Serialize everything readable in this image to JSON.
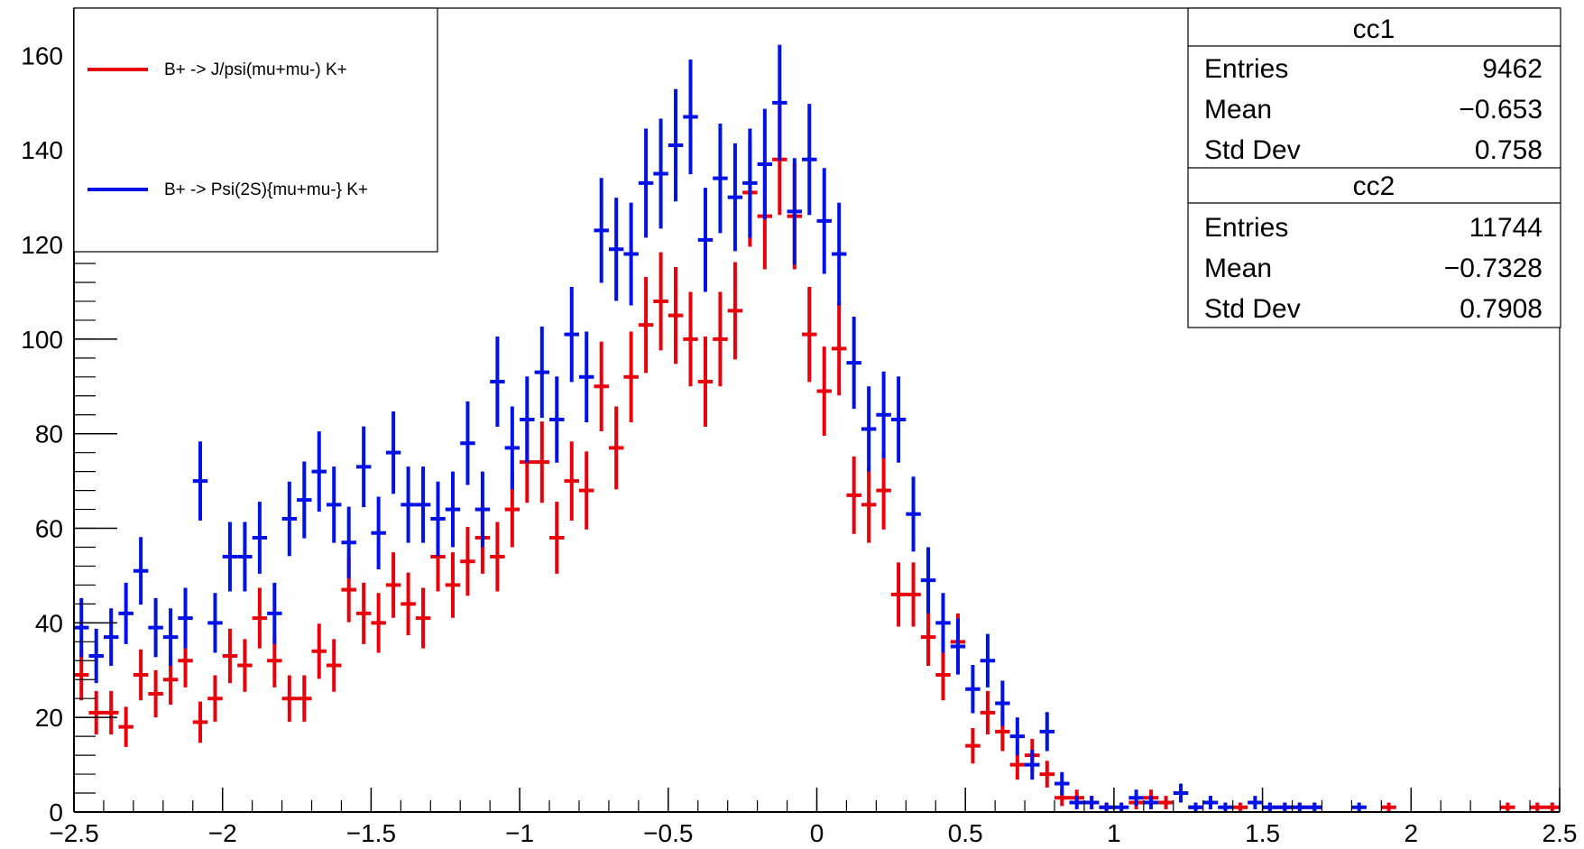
{
  "chart_data": {
    "type": "scatter",
    "title": "",
    "xlabel": "",
    "ylabel": "",
    "xlim": [
      -2.5,
      2.5
    ],
    "ylim": [
      0,
      170
    ],
    "grid": false,
    "x_bin_width": 0.05,
    "x_ticks": [
      {
        "v": -2.5,
        "label": "−2.5"
      },
      {
        "v": -2,
        "label": "−2"
      },
      {
        "v": -1.5,
        "label": "−1.5"
      },
      {
        "v": -1,
        "label": "−1"
      },
      {
        "v": -0.5,
        "label": "−0.5"
      },
      {
        "v": 0,
        "label": "0"
      },
      {
        "v": 0.5,
        "label": "0.5"
      },
      {
        "v": 1,
        "label": "1"
      },
      {
        "v": 1.5,
        "label": "1.5"
      },
      {
        "v": 2,
        "label": "2"
      },
      {
        "v": 2.5,
        "label": "2.5"
      }
    ],
    "y_ticks": [
      {
        "v": 0,
        "label": "0"
      },
      {
        "v": 20,
        "label": "20"
      },
      {
        "v": 40,
        "label": "40"
      },
      {
        "v": 60,
        "label": "60"
      },
      {
        "v": 80,
        "label": "80"
      },
      {
        "v": 100,
        "label": "100"
      },
      {
        "v": 120,
        "label": "120"
      },
      {
        "v": 140,
        "label": "140"
      },
      {
        "v": 160,
        "label": "160"
      }
    ],
    "legend": {
      "position": "top-left",
      "entries": [
        {
          "label": "B+ -> J/psi(mu+mu-) K+",
          "color": "#e8000b"
        },
        {
          "label": "B+ -> Psi(2S){mu+mu-} K+",
          "color": "#0012e6"
        }
      ]
    },
    "stats_boxes": [
      {
        "title": "cc1",
        "rows": [
          {
            "label": "Entries",
            "value": "9462"
          },
          {
            "label": "Mean",
            "value": "−0.653"
          },
          {
            "label": "Std Dev",
            "value": "0.758"
          }
        ]
      },
      {
        "title": "cc2",
        "rows": [
          {
            "label": "Entries",
            "value": "11744"
          },
          {
            "label": "Mean",
            "value": "−0.7328"
          },
          {
            "label": "Std Dev",
            "value": "0.7908"
          }
        ]
      }
    ],
    "series": [
      {
        "name": "B+ -> J/psi(mu+mu-) K+",
        "color": "#e8000b",
        "points": [
          [
            -2.475,
            29
          ],
          [
            -2.425,
            21
          ],
          [
            -2.375,
            21
          ],
          [
            -2.325,
            18
          ],
          [
            -2.275,
            29
          ],
          [
            -2.225,
            25
          ],
          [
            -2.175,
            28
          ],
          [
            -2.125,
            32
          ],
          [
            -2.075,
            19
          ],
          [
            -2.025,
            24
          ],
          [
            -1.975,
            33
          ],
          [
            -1.925,
            31
          ],
          [
            -1.875,
            41
          ],
          [
            -1.825,
            32
          ],
          [
            -1.775,
            24
          ],
          [
            -1.725,
            24
          ],
          [
            -1.675,
            34
          ],
          [
            -1.625,
            31
          ],
          [
            -1.575,
            47
          ],
          [
            -1.525,
            42
          ],
          [
            -1.475,
            40
          ],
          [
            -1.425,
            48
          ],
          [
            -1.375,
            44
          ],
          [
            -1.325,
            41
          ],
          [
            -1.275,
            54
          ],
          [
            -1.225,
            48
          ],
          [
            -1.175,
            53
          ],
          [
            -1.125,
            58
          ],
          [
            -1.075,
            54
          ],
          [
            -1.025,
            64
          ],
          [
            -0.975,
            74
          ],
          [
            -0.925,
            74
          ],
          [
            -0.875,
            58
          ],
          [
            -0.825,
            70
          ],
          [
            -0.775,
            68
          ],
          [
            -0.725,
            90
          ],
          [
            -0.675,
            77
          ],
          [
            -0.625,
            92
          ],
          [
            -0.575,
            103
          ],
          [
            -0.525,
            108
          ],
          [
            -0.475,
            105
          ],
          [
            -0.425,
            100
          ],
          [
            -0.375,
            91
          ],
          [
            -0.325,
            100
          ],
          [
            -0.275,
            106
          ],
          [
            -0.225,
            131
          ],
          [
            -0.175,
            126
          ],
          [
            -0.125,
            138
          ],
          [
            -0.075,
            126
          ],
          [
            -0.025,
            101
          ],
          [
            0.025,
            89
          ],
          [
            0.075,
            98
          ],
          [
            0.125,
            67
          ],
          [
            0.175,
            65
          ],
          [
            0.225,
            68
          ],
          [
            0.275,
            46
          ],
          [
            0.325,
            46
          ],
          [
            0.375,
            37
          ],
          [
            0.425,
            29
          ],
          [
            0.475,
            36
          ],
          [
            0.525,
            14
          ],
          [
            0.575,
            21
          ],
          [
            0.625,
            17
          ],
          [
            0.675,
            10
          ],
          [
            0.725,
            12
          ],
          [
            0.775,
            8
          ],
          [
            0.825,
            3
          ],
          [
            0.875,
            3
          ],
          [
            0.925,
            2
          ],
          [
            0.975,
            1
          ],
          [
            1.075,
            2
          ],
          [
            1.125,
            3
          ],
          [
            1.175,
            2
          ],
          [
            1.275,
            1
          ],
          [
            1.325,
            2
          ],
          [
            1.425,
            1
          ],
          [
            1.525,
            1
          ],
          [
            1.575,
            1
          ],
          [
            1.625,
            1
          ],
          [
            1.675,
            1
          ],
          [
            1.925,
            1
          ],
          [
            2.325,
            1
          ],
          [
            2.425,
            1
          ],
          [
            2.475,
            1
          ]
        ]
      },
      {
        "name": "B+ -> Psi(2S){mu+mu-} K+",
        "color": "#0012e6",
        "points": [
          [
            -2.475,
            39
          ],
          [
            -2.425,
            33
          ],
          [
            -2.375,
            37
          ],
          [
            -2.325,
            42
          ],
          [
            -2.275,
            51
          ],
          [
            -2.225,
            39
          ],
          [
            -2.175,
            37
          ],
          [
            -2.125,
            41
          ],
          [
            -2.075,
            70
          ],
          [
            -2.025,
            40
          ],
          [
            -1.975,
            54
          ],
          [
            -1.925,
            54
          ],
          [
            -1.875,
            58
          ],
          [
            -1.825,
            42
          ],
          [
            -1.775,
            62
          ],
          [
            -1.725,
            66
          ],
          [
            -1.675,
            72
          ],
          [
            -1.625,
            65
          ],
          [
            -1.575,
            57
          ],
          [
            -1.525,
            73
          ],
          [
            -1.475,
            59
          ],
          [
            -1.425,
            76
          ],
          [
            -1.375,
            65
          ],
          [
            -1.325,
            65
          ],
          [
            -1.275,
            62
          ],
          [
            -1.225,
            64
          ],
          [
            -1.175,
            78
          ],
          [
            -1.125,
            64
          ],
          [
            -1.075,
            91
          ],
          [
            -1.025,
            77
          ],
          [
            -0.975,
            83
          ],
          [
            -0.925,
            93
          ],
          [
            -0.875,
            83
          ],
          [
            -0.825,
            101
          ],
          [
            -0.775,
            92
          ],
          [
            -0.725,
            123
          ],
          [
            -0.675,
            119
          ],
          [
            -0.625,
            118
          ],
          [
            -0.575,
            133
          ],
          [
            -0.525,
            135
          ],
          [
            -0.475,
            141
          ],
          [
            -0.425,
            147
          ],
          [
            -0.375,
            121
          ],
          [
            -0.325,
            134
          ],
          [
            -0.275,
            130
          ],
          [
            -0.225,
            133
          ],
          [
            -0.175,
            137
          ],
          [
            -0.125,
            150
          ],
          [
            -0.075,
            127
          ],
          [
            -0.025,
            138
          ],
          [
            0.025,
            125
          ],
          [
            0.075,
            118
          ],
          [
            0.125,
            95
          ],
          [
            0.175,
            81
          ],
          [
            0.225,
            84
          ],
          [
            0.275,
            83
          ],
          [
            0.325,
            63
          ],
          [
            0.375,
            49
          ],
          [
            0.425,
            40
          ],
          [
            0.475,
            35
          ],
          [
            0.525,
            26
          ],
          [
            0.575,
            32
          ],
          [
            0.625,
            23
          ],
          [
            0.675,
            16
          ],
          [
            0.725,
            10
          ],
          [
            0.775,
            17
          ],
          [
            0.825,
            6
          ],
          [
            0.875,
            2
          ],
          [
            0.925,
            2
          ],
          [
            0.975,
            1
          ],
          [
            1.025,
            1
          ],
          [
            1.075,
            3
          ],
          [
            1.125,
            2
          ],
          [
            1.225,
            4
          ],
          [
            1.275,
            1
          ],
          [
            1.325,
            2
          ],
          [
            1.375,
            1
          ],
          [
            1.475,
            2
          ],
          [
            1.525,
            1
          ],
          [
            1.575,
            1
          ],
          [
            1.625,
            1
          ],
          [
            1.675,
            1
          ],
          [
            1.825,
            1
          ]
        ]
      }
    ]
  }
}
